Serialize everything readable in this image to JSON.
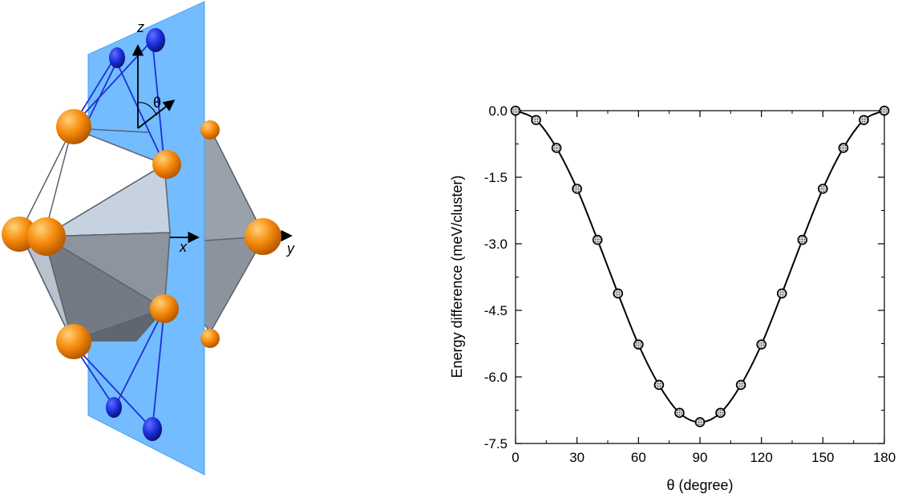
{
  "structure": {
    "axis_labels": {
      "z": "z",
      "x": "x",
      "y": "y",
      "theta": "θ"
    },
    "colors": {
      "plane": "#72bcff",
      "atom": "#f58a0b",
      "dopant": "#1b2bd9",
      "bond": "#1e2fd6"
    }
  },
  "chart_data": {
    "type": "scatter",
    "xlabel": "θ (degree)",
    "ylabel": "Energy difference (meV/cluster)",
    "xlim": [
      0,
      180
    ],
    "ylim": [
      -7.5,
      0.0
    ],
    "xticks": [
      0,
      30,
      60,
      90,
      120,
      150,
      180
    ],
    "yticks": [
      0.0,
      -1.5,
      -3.0,
      -4.5,
      -6.0,
      -7.5
    ],
    "ytick_labels": [
      "0.0",
      "-1.5",
      "-3.0",
      "-4.5",
      "-6.0",
      "-7.5"
    ],
    "series": [
      {
        "x": [
          0,
          10,
          20,
          30,
          40,
          50,
          60,
          70,
          80,
          90,
          100,
          110,
          120,
          130,
          140,
          150,
          160,
          170,
          180
        ],
        "values": [
          0.0,
          -0.21,
          -0.84,
          -1.76,
          -2.91,
          -4.12,
          -5.27,
          -6.18,
          -6.81,
          -7.02,
          -6.81,
          -6.18,
          -5.27,
          -4.12,
          -2.91,
          -1.76,
          -0.84,
          -0.21,
          0.0
        ]
      }
    ],
    "grid": false
  }
}
